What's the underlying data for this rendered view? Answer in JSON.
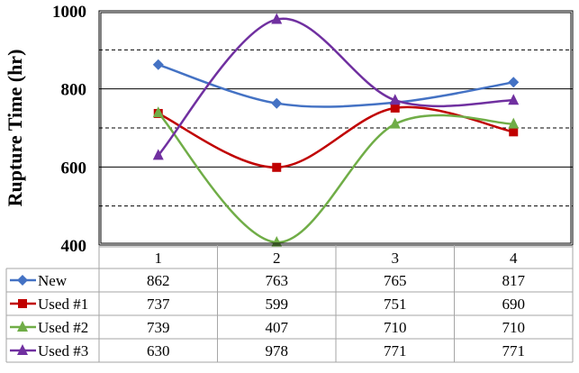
{
  "chart_data": {
    "type": "line",
    "title": "",
    "xlabel": "",
    "ylabel": "Rupture Time (hr)",
    "ylim": [
      400,
      1000
    ],
    "yticks": [
      "400",
      "600",
      "800",
      "1000"
    ],
    "grid": {
      "solid": [
        600,
        800
      ],
      "dashed": [
        500,
        700,
        900
      ]
    },
    "smooth": true,
    "categories": [
      "1",
      "2",
      "3",
      "4"
    ],
    "legend_placement": "data-table",
    "series": [
      {
        "name": "New",
        "values": [
          862,
          763,
          765,
          817
        ],
        "color": "#4472C4",
        "marker": "diamond"
      },
      {
        "name": "Used #1",
        "values": [
          737,
          599,
          751,
          690
        ],
        "color": "#C00000",
        "marker": "square"
      },
      {
        "name": "Used #2",
        "values": [
          739,
          407,
          710,
          710
        ],
        "color": "#70AD47",
        "marker": "triangle"
      },
      {
        "name": "Used #3",
        "values": [
          630,
          978,
          771,
          771
        ],
        "color": "#7030A0",
        "marker": "triangle"
      }
    ]
  }
}
